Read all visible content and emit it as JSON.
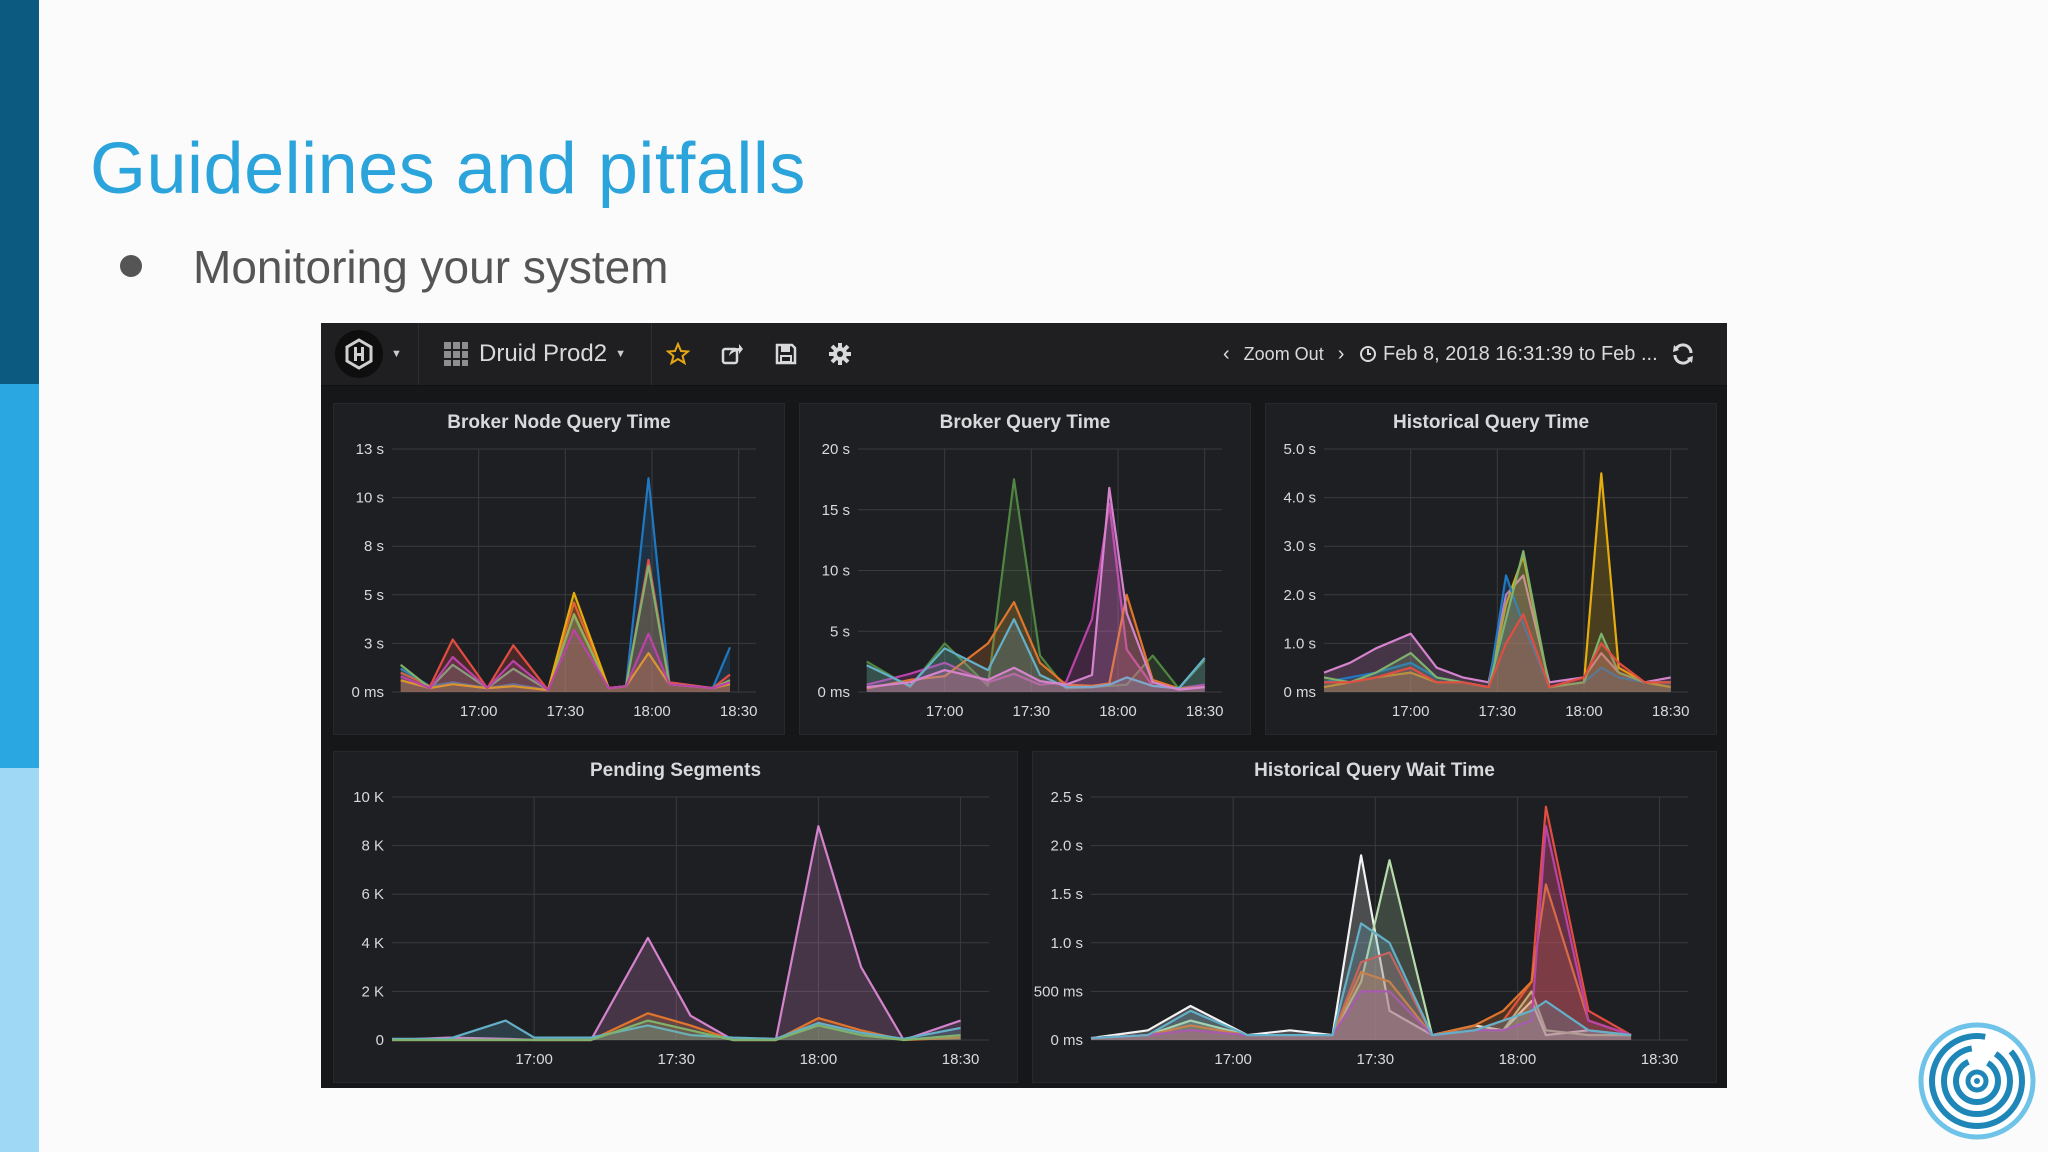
{
  "slide": {
    "title": "Guidelines and pitfalls",
    "bullet": "Monitoring your system"
  },
  "navbar": {
    "dashboard_name": "Druid Prod2",
    "zoom_out_label": "Zoom Out",
    "time_range": "Feb 8, 2018 16:31:39 to Feb ...",
    "icons": [
      "grafana-logo-icon",
      "dashboard-grid-icon",
      "star-icon",
      "share-icon",
      "save-icon",
      "gear-icon",
      "chevron-left-icon",
      "chevron-right-icon",
      "clock-icon",
      "refresh-icon"
    ]
  },
  "colors": {
    "background": "#161719",
    "panel": "#1e1f22",
    "title_blue": "#2ba3db",
    "star": "#e5a612"
  },
  "chart_data": [
    {
      "type": "area",
      "title": "Broker Node Query Time",
      "y_ticks": [
        "13 s",
        "10 s",
        "8 s",
        "5 s",
        "3 s",
        "0 ms"
      ],
      "x_ticks": [
        "17:00",
        "17:30",
        "18:00",
        "18:30"
      ],
      "ylim": [
        0,
        12.5
      ],
      "grid": true,
      "series": [
        {
          "color": "#1f78c1",
          "x": [
            16.55,
            16.72,
            16.85,
            17.05,
            17.2,
            17.4,
            17.55,
            17.75,
            17.85,
            17.98,
            18.1,
            18.35,
            18.45
          ],
          "values": [
            1.2,
            0.3,
            0.5,
            0.2,
            0.4,
            0.1,
            3.9,
            0.2,
            0.3,
            11.0,
            0.5,
            0.2,
            2.3
          ]
        },
        {
          "color": "#e24d42",
          "x": [
            16.55,
            16.72,
            16.85,
            17.05,
            17.2,
            17.4,
            17.55,
            17.75,
            17.85,
            17.98,
            18.1,
            18.35,
            18.45
          ],
          "values": [
            1.0,
            0.3,
            2.7,
            0.2,
            2.4,
            0.1,
            4.6,
            0.2,
            0.3,
            6.8,
            0.5,
            0.2,
            0.9
          ]
        },
        {
          "color": "#7eb26d",
          "x": [
            16.55,
            16.72,
            16.85,
            17.05,
            17.2,
            17.4,
            17.55,
            17.75,
            17.85,
            17.98,
            18.1,
            18.35,
            18.45
          ],
          "values": [
            1.4,
            0.2,
            1.4,
            0.2,
            1.2,
            0.1,
            4.0,
            0.2,
            0.3,
            6.5,
            0.4,
            0.2,
            0.6
          ]
        },
        {
          "color": "#e5ac0e",
          "x": [
            16.55,
            16.72,
            16.85,
            17.05,
            17.2,
            17.4,
            17.55,
            17.75,
            17.85,
            17.98,
            18.1,
            18.35,
            18.45
          ],
          "values": [
            0.6,
            0.2,
            0.4,
            0.2,
            0.3,
            0.1,
            5.1,
            0.2,
            0.3,
            2.0,
            0.4,
            0.2,
            0.4
          ]
        },
        {
          "color": "#ba43a9",
          "x": [
            16.55,
            16.72,
            16.85,
            17.05,
            17.2,
            17.4,
            17.55,
            17.75,
            17.85,
            17.98,
            18.1,
            18.35,
            18.45
          ],
          "values": [
            0.8,
            0.2,
            1.8,
            0.2,
            1.6,
            0.1,
            3.2,
            0.2,
            0.3,
            3.0,
            0.4,
            0.2,
            0.5
          ]
        }
      ]
    },
    {
      "type": "area",
      "title": "Broker Query Time",
      "y_ticks": [
        "20 s",
        "15 s",
        "10 s",
        "5 s",
        "0 ms"
      ],
      "x_ticks": [
        "17:00",
        "17:30",
        "18:00",
        "18:30"
      ],
      "ylim": [
        0,
        20
      ],
      "grid": true,
      "series": [
        {
          "color": "#508642",
          "x": [
            16.55,
            16.8,
            17.0,
            17.25,
            17.4,
            17.55,
            17.7,
            17.85,
            17.95,
            18.05,
            18.2,
            18.35,
            18.5
          ],
          "values": [
            2.5,
            0.4,
            4.0,
            0.5,
            17.5,
            3.0,
            0.3,
            0.4,
            0.5,
            0.6,
            3.0,
            0.3,
            2.6
          ]
        },
        {
          "color": "#ba43a9",
          "x": [
            16.55,
            16.8,
            17.0,
            17.25,
            17.4,
            17.55,
            17.7,
            17.85,
            17.95,
            18.05,
            18.2,
            18.35,
            18.5
          ],
          "values": [
            0.6,
            1.5,
            2.4,
            0.8,
            1.5,
            0.6,
            0.8,
            6.0,
            15.5,
            3.5,
            0.5,
            0.3,
            0.6
          ]
        },
        {
          "color": "#e0752d",
          "x": [
            16.55,
            16.8,
            17.0,
            17.25,
            17.4,
            17.55,
            17.7,
            17.85,
            17.95,
            18.05,
            18.2,
            18.35,
            18.5
          ],
          "values": [
            0.3,
            1.0,
            1.3,
            4.0,
            7.4,
            2.4,
            0.6,
            0.5,
            0.7,
            8.0,
            1.0,
            0.3,
            0.4
          ]
        },
        {
          "color": "#64b0c8",
          "x": [
            16.55,
            16.8,
            17.0,
            17.25,
            17.4,
            17.55,
            17.7,
            17.85,
            17.95,
            18.05,
            18.2,
            18.35,
            18.5
          ],
          "values": [
            2.2,
            0.5,
            3.6,
            1.8,
            6.0,
            1.4,
            0.4,
            0.4,
            0.6,
            1.2,
            0.5,
            0.3,
            2.8
          ]
        },
        {
          "color": "#d683ce",
          "x": [
            16.55,
            16.8,
            17.0,
            17.25,
            17.4,
            17.55,
            17.7,
            17.85,
            17.95,
            18.05,
            18.2,
            18.35,
            18.5
          ],
          "values": [
            0.4,
            0.8,
            1.8,
            1.0,
            2.0,
            0.9,
            0.6,
            1.4,
            16.8,
            6.5,
            0.8,
            0.2,
            0.4
          ]
        }
      ]
    },
    {
      "type": "area",
      "title": "Historical Query Time",
      "y_ticks": [
        "5.0 s",
        "4.0 s",
        "3.0 s",
        "2.0 s",
        "1.0 s",
        "0 ms"
      ],
      "x_ticks": [
        "17:00",
        "17:30",
        "18:00",
        "18:30"
      ],
      "ylim": [
        0,
        5
      ],
      "grid": true,
      "series": [
        {
          "color": "#d683ce",
          "x": [
            16.5,
            16.65,
            16.8,
            17.0,
            17.15,
            17.3,
            17.45,
            17.55,
            17.65,
            17.8,
            18.0,
            18.1,
            18.2,
            18.35,
            18.5
          ],
          "values": [
            0.4,
            0.6,
            0.9,
            1.2,
            0.5,
            0.3,
            0.2,
            2.0,
            2.4,
            0.2,
            0.3,
            0.8,
            0.4,
            0.2,
            0.3
          ]
        },
        {
          "color": "#e5ac0e",
          "x": [
            16.5,
            16.65,
            16.8,
            17.0,
            17.15,
            17.3,
            17.45,
            17.55,
            17.65,
            17.8,
            18.0,
            18.1,
            18.2,
            18.35,
            18.5
          ],
          "values": [
            0.1,
            0.2,
            0.3,
            0.4,
            0.2,
            0.2,
            0.1,
            1.8,
            2.8,
            0.1,
            0.2,
            4.5,
            0.5,
            0.2,
            0.1
          ]
        },
        {
          "color": "#1f78c1",
          "x": [
            16.5,
            16.65,
            16.8,
            17.0,
            17.15,
            17.3,
            17.45,
            17.55,
            17.65,
            17.8,
            18.0,
            18.1,
            18.2,
            18.35,
            18.5
          ],
          "values": [
            0.2,
            0.3,
            0.4,
            0.6,
            0.3,
            0.2,
            0.1,
            2.4,
            1.4,
            0.1,
            0.2,
            0.5,
            0.3,
            0.2,
            0.2
          ]
        },
        {
          "color": "#7eb26d",
          "x": [
            16.5,
            16.65,
            16.8,
            17.0,
            17.15,
            17.3,
            17.45,
            17.55,
            17.65,
            17.8,
            18.0,
            18.1,
            18.2,
            18.35,
            18.5
          ],
          "values": [
            0.3,
            0.2,
            0.4,
            0.8,
            0.3,
            0.2,
            0.1,
            1.5,
            2.9,
            0.1,
            0.2,
            1.2,
            0.4,
            0.2,
            0.2
          ]
        },
        {
          "color": "#e24d42",
          "x": [
            16.5,
            16.65,
            16.8,
            17.0,
            17.15,
            17.3,
            17.45,
            17.55,
            17.65,
            17.8,
            18.0,
            18.1,
            18.2,
            18.35,
            18.5
          ],
          "values": [
            0.2,
            0.2,
            0.3,
            0.5,
            0.2,
            0.2,
            0.1,
            1.0,
            1.6,
            0.1,
            0.3,
            1.0,
            0.6,
            0.2,
            0.2
          ]
        }
      ]
    },
    {
      "type": "area",
      "title": "Pending Segments",
      "y_ticks": [
        "10 K",
        "8 K",
        "6 K",
        "4 K",
        "2 K",
        "0"
      ],
      "x_ticks": [
        "17:00",
        "17:30",
        "18:00",
        "18:30"
      ],
      "ylim": [
        0,
        10000
      ],
      "grid": true,
      "series": [
        {
          "color": "#d683ce",
          "x": [
            16.5,
            16.7,
            16.9,
            17.0,
            17.2,
            17.4,
            17.55,
            17.7,
            17.85,
            18.0,
            18.15,
            18.3,
            18.5
          ],
          "values": [
            0,
            100,
            50,
            0,
            0,
            4200,
            1000,
            0,
            0,
            8800,
            3000,
            0,
            800
          ]
        },
        {
          "color": "#e0752d",
          "x": [
            16.5,
            16.7,
            16.9,
            17.0,
            17.2,
            17.4,
            17.55,
            17.7,
            17.85,
            18.0,
            18.15,
            18.3,
            18.5
          ],
          "values": [
            0,
            0,
            0,
            0,
            0,
            1100,
            600,
            0,
            0,
            900,
            400,
            0,
            100
          ]
        },
        {
          "color": "#64b0c8",
          "x": [
            16.5,
            16.7,
            16.9,
            17.0,
            17.2,
            17.4,
            17.55,
            17.7,
            17.85,
            18.0,
            18.15,
            18.3,
            18.5
          ],
          "values": [
            50,
            50,
            800,
            100,
            100,
            600,
            200,
            100,
            50,
            700,
            300,
            50,
            500
          ]
        },
        {
          "color": "#7eb26d",
          "x": [
            16.5,
            16.7,
            16.9,
            17.0,
            17.2,
            17.4,
            17.55,
            17.7,
            17.85,
            18.0,
            18.15,
            18.3,
            18.5
          ],
          "values": [
            0,
            0,
            0,
            0,
            0,
            800,
            400,
            0,
            0,
            600,
            200,
            0,
            200
          ]
        }
      ]
    },
    {
      "type": "area",
      "title": "Historical Query Wait Time",
      "y_ticks": [
        "2.5 s",
        "2.0 s",
        "1.5 s",
        "1.0 s",
        "500 ms",
        "0 ms"
      ],
      "x_ticks": [
        "17:00",
        "17:30",
        "18:00",
        "18:30"
      ],
      "ylim": [
        0,
        2.5
      ],
      "grid": true,
      "series": [
        {
          "color": "#f2f2f2",
          "x": [
            16.5,
            16.7,
            16.85,
            17.05,
            17.2,
            17.35,
            17.45,
            17.55,
            17.7,
            17.85,
            17.95,
            18.05,
            18.1,
            18.25,
            18.4
          ],
          "values": [
            0.02,
            0.1,
            0.35,
            0.05,
            0.1,
            0.05,
            1.9,
            0.3,
            0.05,
            0.15,
            0.1,
            0.4,
            0.05,
            0.1,
            0.05
          ]
        },
        {
          "color": "#b7dbab",
          "x": [
            16.5,
            16.7,
            16.85,
            17.05,
            17.2,
            17.35,
            17.45,
            17.55,
            17.7,
            17.85,
            17.95,
            18.05,
            18.1,
            18.25,
            18.4
          ],
          "values": [
            0.02,
            0.05,
            0.2,
            0.05,
            0.05,
            0.05,
            0.6,
            1.85,
            0.05,
            0.1,
            0.1,
            0.5,
            0.1,
            0.05,
            0.05
          ]
        },
        {
          "color": "#e24d42",
          "x": [
            16.5,
            16.7,
            16.85,
            17.05,
            17.2,
            17.35,
            17.45,
            17.55,
            17.7,
            17.85,
            17.95,
            18.05,
            18.1,
            18.25,
            18.4
          ],
          "values": [
            0.02,
            0.05,
            0.1,
            0.05,
            0.05,
            0.05,
            0.8,
            0.9,
            0.05,
            0.1,
            0.2,
            0.6,
            2.4,
            0.3,
            0.05
          ]
        },
        {
          "color": "#e0752d",
          "x": [
            16.5,
            16.7,
            16.85,
            17.05,
            17.2,
            17.35,
            17.45,
            17.55,
            17.7,
            17.85,
            17.95,
            18.05,
            18.1,
            18.25,
            18.4
          ],
          "values": [
            0.02,
            0.05,
            0.15,
            0.05,
            0.05,
            0.05,
            0.7,
            0.6,
            0.05,
            0.15,
            0.3,
            0.6,
            1.6,
            0.2,
            0.05
          ]
        },
        {
          "color": "#ba43a9",
          "x": [
            16.5,
            16.7,
            16.85,
            17.05,
            17.2,
            17.35,
            17.45,
            17.55,
            17.7,
            17.85,
            17.95,
            18.05,
            18.1,
            18.25,
            18.4
          ],
          "values": [
            0.02,
            0.05,
            0.1,
            0.05,
            0.05,
            0.05,
            0.5,
            0.5,
            0.05,
            0.1,
            0.1,
            0.2,
            2.2,
            0.2,
            0.05
          ]
        },
        {
          "color": "#64b0c8",
          "x": [
            16.5,
            16.7,
            16.85,
            17.05,
            17.2,
            17.35,
            17.45,
            17.55,
            17.7,
            17.85,
            17.95,
            18.05,
            18.1,
            18.25,
            18.4
          ],
          "values": [
            0.02,
            0.05,
            0.3,
            0.05,
            0.05,
            0.05,
            1.2,
            1.0,
            0.05,
            0.1,
            0.2,
            0.3,
            0.4,
            0.1,
            0.05
          ]
        }
      ]
    }
  ]
}
